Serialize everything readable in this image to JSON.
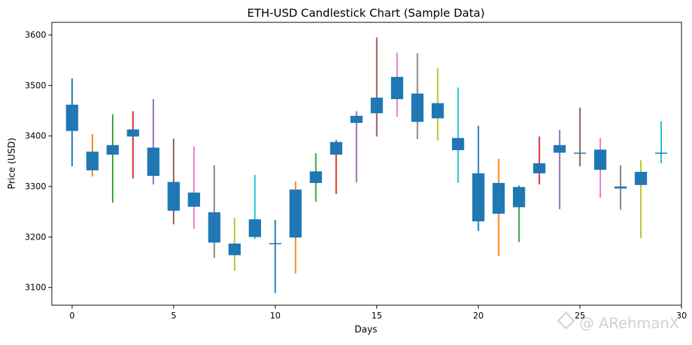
{
  "chart_data": {
    "type": "candlestick",
    "title": "ETH-USD Candlestick Chart (Sample Data)",
    "xlabel": "Days",
    "ylabel": "Price (USD)",
    "xlim": [
      -1,
      30
    ],
    "ylim": [
      3065,
      3625
    ],
    "xticks": [
      0,
      5,
      10,
      15,
      20,
      25,
      30
    ],
    "yticks": [
      3100,
      3200,
      3300,
      3400,
      3500,
      3600
    ],
    "grid": false,
    "legend": "none",
    "body_color": "#1f77b4",
    "wick_colors": [
      "#1f77b4",
      "#ff7f0e",
      "#2ca02c",
      "#d62728",
      "#9467bd",
      "#8c564b",
      "#e377c2",
      "#7f7f7f",
      "#bcbd22",
      "#17becf"
    ],
    "candles": [
      {
        "day": 0,
        "open": 3410,
        "close": 3462,
        "high": 3514,
        "low": 3340
      },
      {
        "day": 1,
        "open": 3332,
        "close": 3369,
        "high": 3404,
        "low": 3320
      },
      {
        "day": 2,
        "open": 3363,
        "close": 3382,
        "high": 3443,
        "low": 3268
      },
      {
        "day": 3,
        "open": 3399,
        "close": 3413,
        "high": 3449,
        "low": 3316
      },
      {
        "day": 4,
        "open": 3321,
        "close": 3377,
        "high": 3473,
        "low": 3304
      },
      {
        "day": 5,
        "open": 3252,
        "close": 3309,
        "high": 3395,
        "low": 3225
      },
      {
        "day": 6,
        "open": 3260,
        "close": 3288,
        "high": 3379,
        "low": 3216
      },
      {
        "day": 7,
        "open": 3189,
        "close": 3249,
        "high": 3342,
        "low": 3159
      },
      {
        "day": 8,
        "open": 3164,
        "close": 3187,
        "high": 3238,
        "low": 3133
      },
      {
        "day": 9,
        "open": 3200,
        "close": 3235,
        "high": 3323,
        "low": 3196
      },
      {
        "day": 10,
        "open": 3187,
        "close": 3188,
        "high": 3234,
        "low": 3089
      },
      {
        "day": 11,
        "open": 3199,
        "close": 3294,
        "high": 3310,
        "low": 3128
      },
      {
        "day": 12,
        "open": 3307,
        "close": 3330,
        "high": 3366,
        "low": 3270
      },
      {
        "day": 13,
        "open": 3363,
        "close": 3388,
        "high": 3392,
        "low": 3285
      },
      {
        "day": 14,
        "open": 3426,
        "close": 3440,
        "high": 3449,
        "low": 3308
      },
      {
        "day": 15,
        "open": 3445,
        "close": 3476,
        "high": 3595,
        "low": 3399
      },
      {
        "day": 16,
        "open": 3473,
        "close": 3517,
        "high": 3565,
        "low": 3438
      },
      {
        "day": 17,
        "open": 3428,
        "close": 3484,
        "high": 3564,
        "low": 3394
      },
      {
        "day": 18,
        "open": 3435,
        "close": 3465,
        "high": 3534,
        "low": 3391
      },
      {
        "day": 19,
        "open": 3372,
        "close": 3396,
        "high": 3496,
        "low": 3307
      },
      {
        "day": 20,
        "open": 3231,
        "close": 3326,
        "high": 3420,
        "low": 3212
      },
      {
        "day": 21,
        "open": 3246,
        "close": 3307,
        "high": 3355,
        "low": 3162
      },
      {
        "day": 22,
        "open": 3259,
        "close": 3299,
        "high": 3302,
        "low": 3190
      },
      {
        "day": 23,
        "open": 3326,
        "close": 3346,
        "high": 3399,
        "low": 3304
      },
      {
        "day": 24,
        "open": 3367,
        "close": 3382,
        "high": 3412,
        "low": 3255
      },
      {
        "day": 25,
        "open": 3366,
        "close": 3367,
        "high": 3456,
        "low": 3340
      },
      {
        "day": 26,
        "open": 3333,
        "close": 3373,
        "high": 3396,
        "low": 3278
      },
      {
        "day": 27,
        "open": 3296,
        "close": 3300,
        "high": 3342,
        "low": 3254
      },
      {
        "day": 28,
        "open": 3303,
        "close": 3329,
        "high": 3352,
        "low": 3198
      },
      {
        "day": 29,
        "open": 3366,
        "close": 3367,
        "high": 3429,
        "low": 3346
      }
    ]
  },
  "watermark": {
    "text": "@ ARehmanX",
    "icon": "diamond-logo-icon"
  }
}
